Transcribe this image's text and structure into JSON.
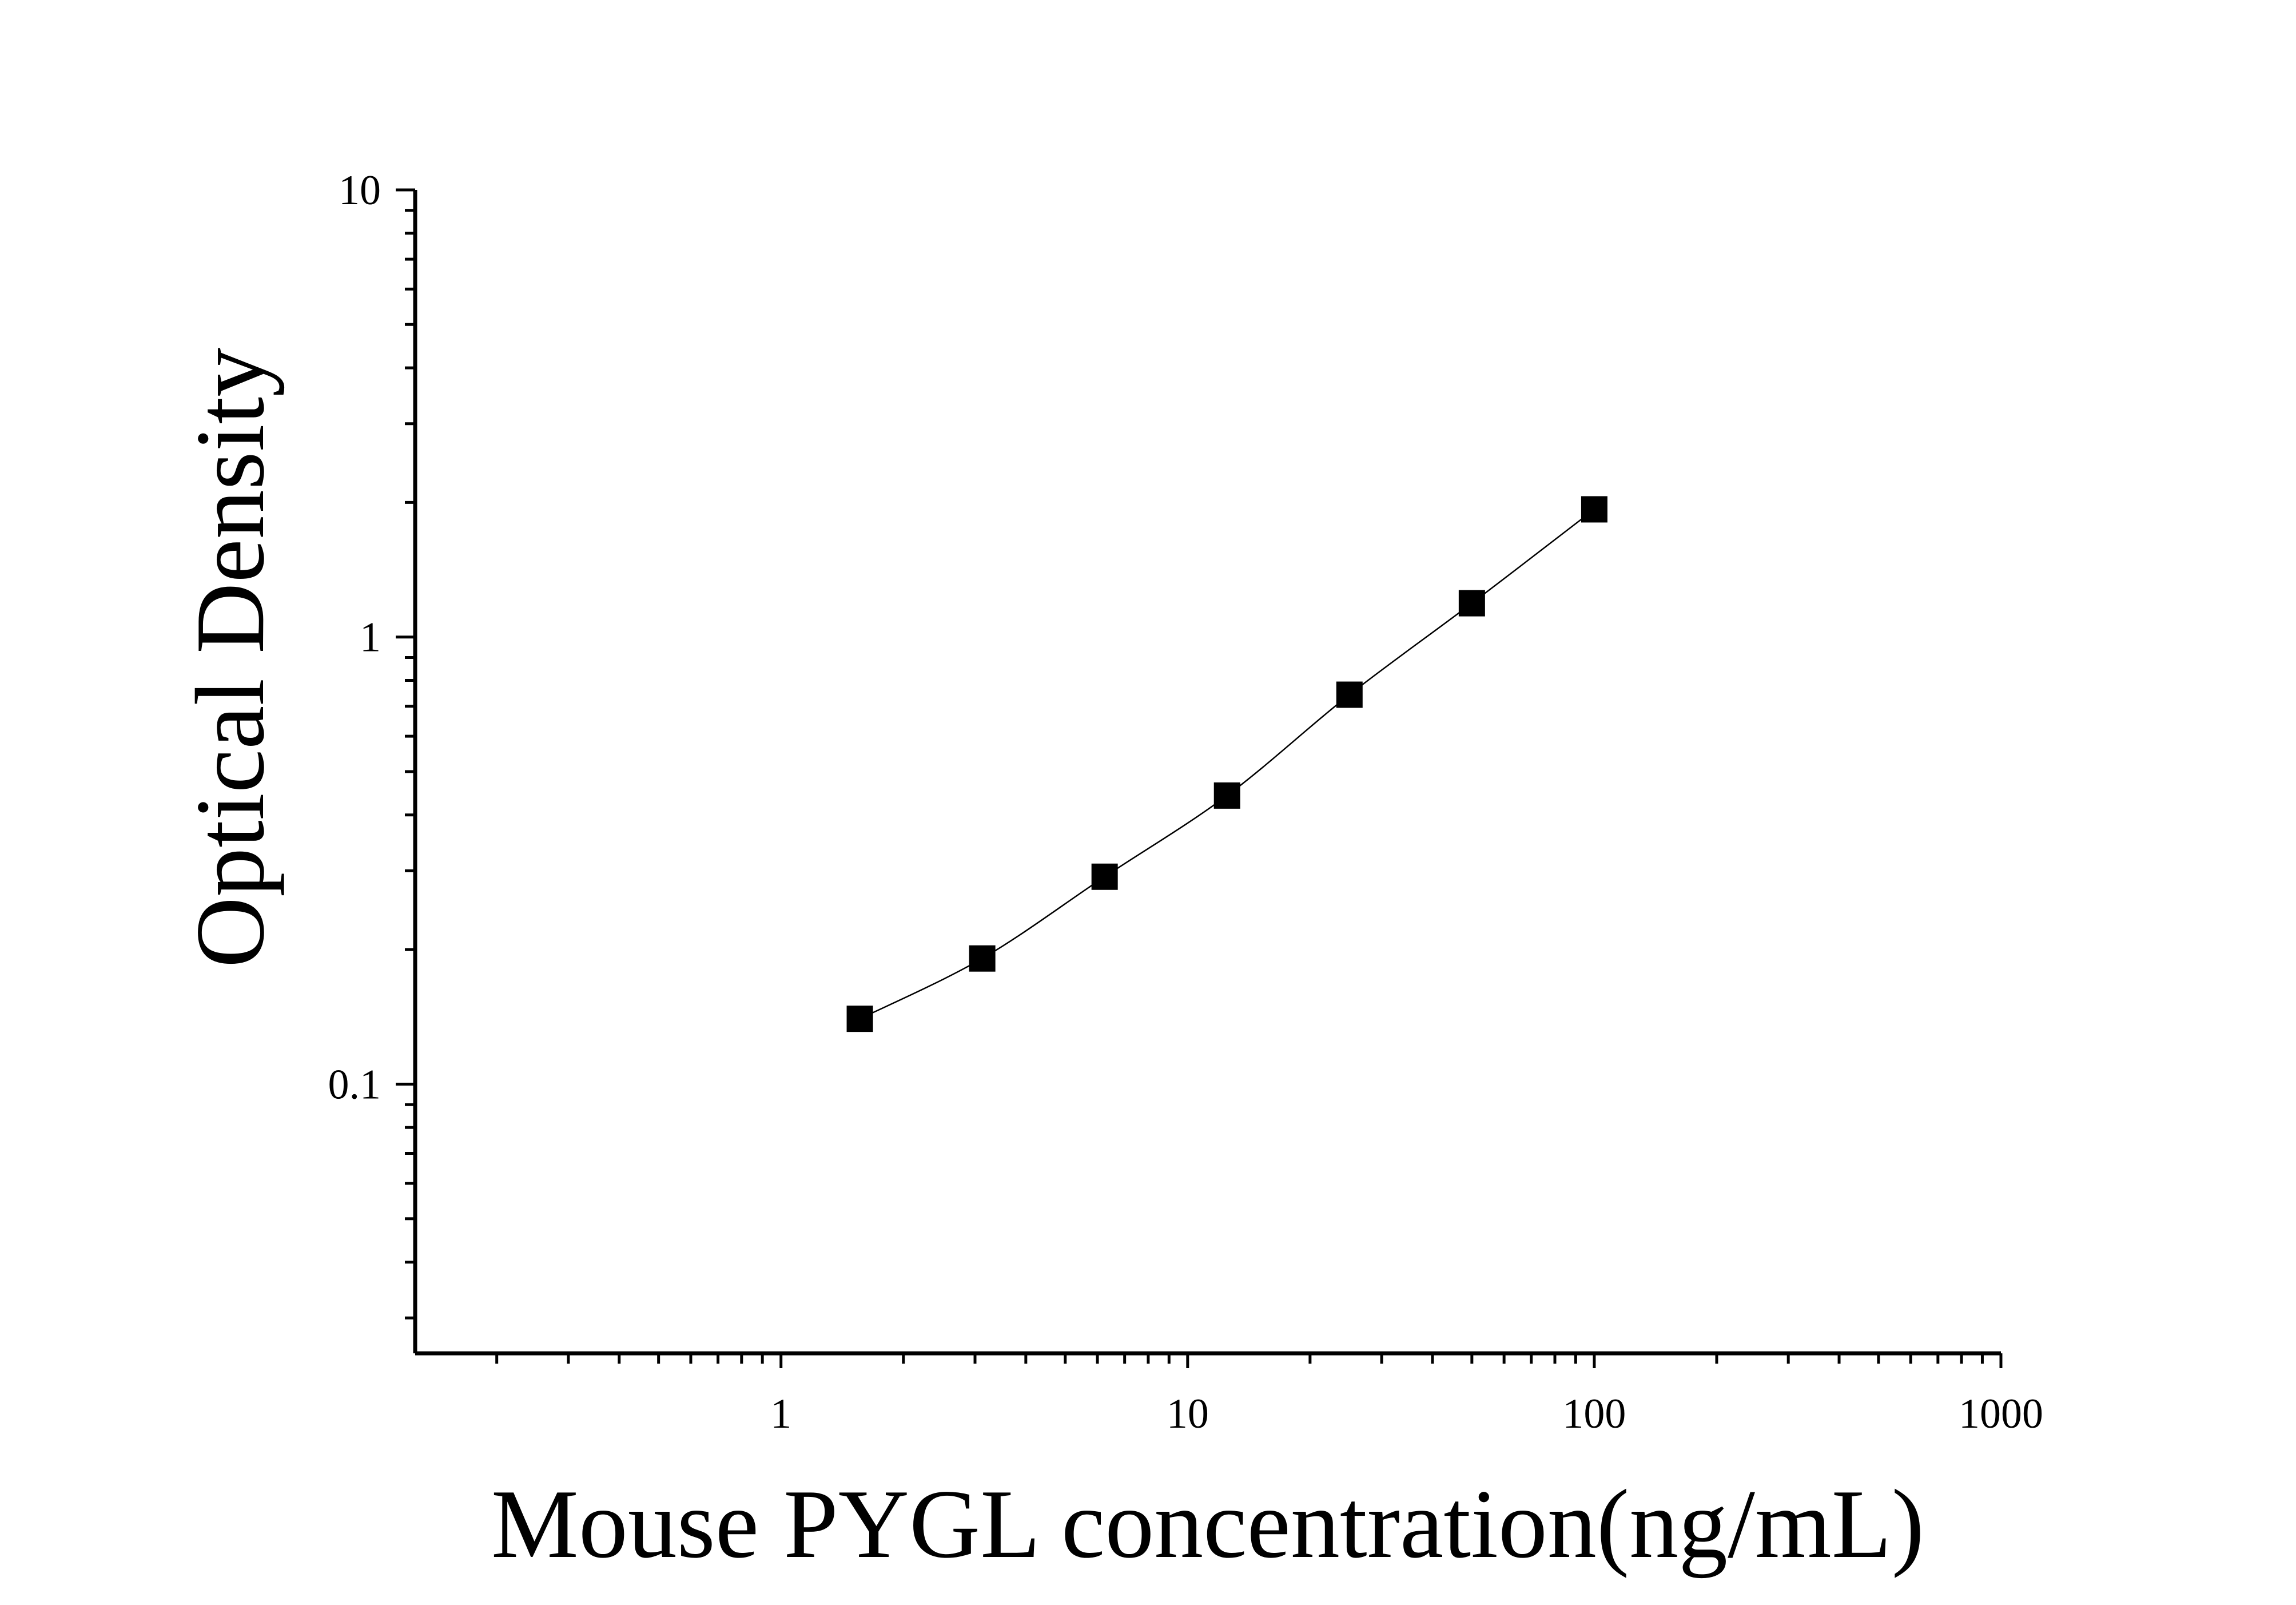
{
  "chart_data": {
    "type": "scatter",
    "title": "",
    "xlabel": "Mouse PYGL concentration(ng/mL)",
    "ylabel": "Optical Density",
    "x_scale": "log",
    "y_scale": "log",
    "xlim": [
      0.126,
      1000
    ],
    "ylim": [
      0.025,
      10
    ],
    "x_ticks": [
      {
        "v": 1,
        "label": "1"
      },
      {
        "v": 10,
        "label": "10"
      },
      {
        "v": 100,
        "label": "100"
      },
      {
        "v": 1000,
        "label": "1000"
      }
    ],
    "y_ticks": [
      {
        "v": 0.1,
        "label": "0.1"
      },
      {
        "v": 1,
        "label": "1"
      },
      {
        "v": 10,
        "label": "10"
      }
    ],
    "grid": false,
    "marker": "square",
    "color": "#000000",
    "fit_line": true,
    "series": [
      {
        "x": [
          1.5625,
          3.125,
          6.25,
          12.5,
          25,
          50,
          100
        ],
        "y": [
          0.14,
          0.191,
          0.291,
          0.442,
          0.743,
          1.19,
          1.93
        ]
      }
    ]
  }
}
